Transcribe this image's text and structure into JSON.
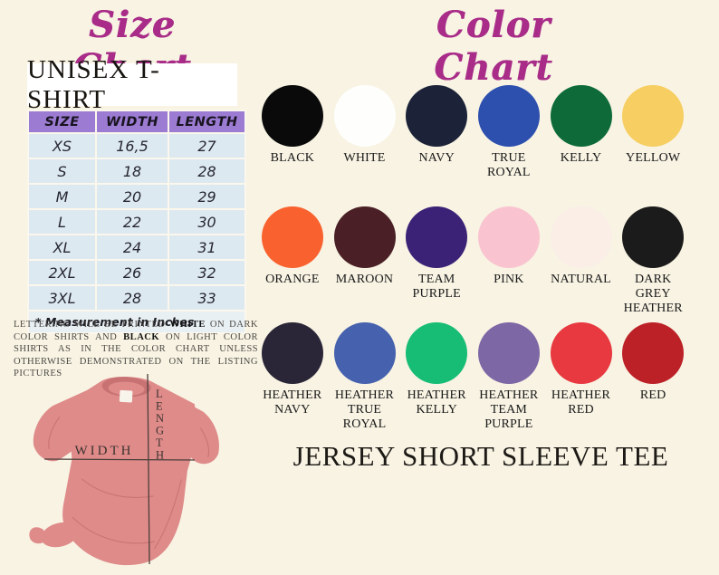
{
  "page": {
    "background": "#f8f3e3",
    "accent": "#a82c88"
  },
  "size_chart": {
    "title": "Size Chart",
    "product_type": "UNISEX T-SHIRT",
    "table": {
      "headers": [
        "SIZE",
        "WIDTH",
        "LENGTH"
      ],
      "rows": [
        [
          "XS",
          "16,5",
          "27"
        ],
        [
          "S",
          "18",
          "28"
        ],
        [
          "M",
          "20",
          "29"
        ],
        [
          "L",
          "22",
          "30"
        ],
        [
          "XL",
          "24",
          "31"
        ],
        [
          "2XL",
          "26",
          "32"
        ],
        [
          "3XL",
          "28",
          "33"
        ]
      ],
      "footnote": "* Measurement in Inches",
      "header_bg": "#9c7bd3",
      "row_bg": "#dde9f0"
    },
    "note": {
      "part1": "LETTERING WILL BE PRINTED ",
      "bold1": "WHITE",
      "part2": " ON DARK COLOR SHIRTS AND ",
      "bold2": "BLACK",
      "part3": " ON LIGHT COLOR SHIRTS AS IN THE COLOR CHART UNLESS OTHERWISE DEMONSTRATED ON THE LISTING PICTURES"
    },
    "diagram": {
      "width_label": "WIDTH",
      "length_label": "LENGTH",
      "shirt_color": "#df8b8a",
      "shirt_shadow": "#c87274"
    }
  },
  "color_chart": {
    "title": "Color Chart",
    "rows": [
      [
        {
          "name": "BLACK",
          "hex": "#0a0a0a"
        },
        {
          "name": "WHITE",
          "hex": "#fefefc"
        },
        {
          "name": "NAVY",
          "hex": "#1c2338"
        },
        {
          "name": "TRUE ROYAL",
          "hex": "#2d4fae"
        },
        {
          "name": "KELLY",
          "hex": "#0e6b39"
        },
        {
          "name": "YELLOW",
          "hex": "#f6ce62"
        }
      ],
      [
        {
          "name": "ORANGE",
          "hex": "#f9622e"
        },
        {
          "name": "MAROON",
          "hex": "#4a2026"
        },
        {
          "name": "TEAM PURPLE",
          "hex": "#3b2277"
        },
        {
          "name": "PINK",
          "hex": "#f9c4d0"
        },
        {
          "name": "NATURAL",
          "hex": "#faeee7"
        },
        {
          "name": "DARK GREY HEATHER",
          "hex": "#1c1b1b"
        }
      ],
      [
        {
          "name": "HEATHER NAVY",
          "hex": "#2a2637"
        },
        {
          "name": "HEATHER TRUE ROYAL",
          "hex": "#4662ae"
        },
        {
          "name": "HEATHER KELLY",
          "hex": "#17bd75"
        },
        {
          "name": "HEATHER TEAM PURPLE",
          "hex": "#7e67a5"
        },
        {
          "name": "HEATHER RED",
          "hex": "#e7393f"
        },
        {
          "name": "RED",
          "hex": "#bc2127"
        }
      ]
    ]
  },
  "product_name": "JERSEY SHORT SLEEVE TEE"
}
